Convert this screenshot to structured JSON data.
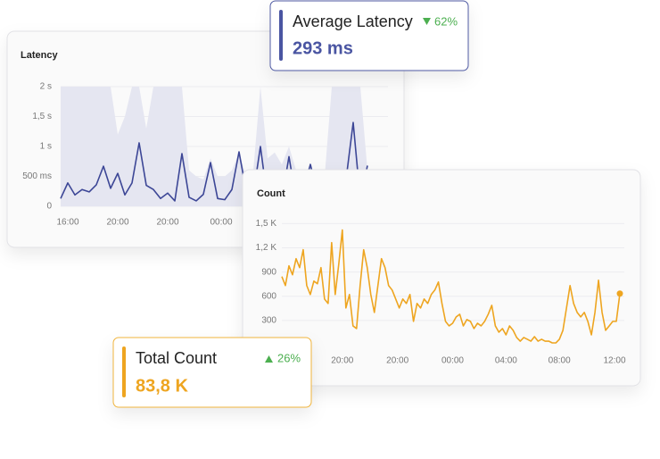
{
  "chart_data": [
    {
      "type": "line",
      "title": "Latency",
      "grid": true,
      "xlim": [
        0,
        43
      ],
      "ylim": [
        0,
        2000
      ],
      "xticks": [
        {
          "value": 1,
          "label": "16:00"
        },
        {
          "value": 8,
          "label": "20:00"
        },
        {
          "value": 15,
          "label": "20:00"
        },
        {
          "value": 22.5,
          "label": "00:00"
        }
      ],
      "yticks": [
        0,
        {
          "value": 500,
          "label": "500 ms"
        },
        {
          "value": 1000,
          "label": "1 s"
        },
        {
          "value": 1500,
          "label": "1,5 s"
        },
        {
          "value": 2000,
          "label": "2 s"
        }
      ],
      "series": [
        {
          "style": "area",
          "color": "#e5e6f1",
          "values": [
            2000,
            2000,
            2000,
            2000,
            2000,
            2000,
            2000,
            2000,
            1200,
            1500,
            2000,
            2000,
            1300,
            2000,
            2000,
            2000,
            2000,
            2000,
            600,
            500,
            450,
            800,
            500,
            500,
            600,
            900,
            500,
            600,
            2000,
            800,
            900,
            700,
            1000,
            600,
            500,
            700,
            400,
            500,
            2000,
            2000,
            2000,
            2000,
            2000,
            600
          ]
        },
        {
          "style": "line",
          "color": "#3c4696",
          "values": [
            130,
            390,
            190,
            280,
            240,
            360,
            670,
            300,
            550,
            190,
            390,
            1060,
            350,
            280,
            130,
            220,
            90,
            880,
            150,
            90,
            200,
            730,
            130,
            110,
            280,
            910,
            250,
            200,
            1000,
            90,
            150,
            120,
            830,
            110,
            250,
            700,
            200,
            120,
            540,
            90,
            450,
            1400,
            100,
            680
          ]
        }
      ]
    },
    {
      "type": "line",
      "title": "Count",
      "grid": true,
      "xlim": [
        0,
        95
      ],
      "ylim": [
        0,
        1560
      ],
      "xticks": [
        {
          "value": 17,
          "label": "20:00"
        },
        {
          "value": 32.5,
          "label": "20:00"
        },
        {
          "value": 48,
          "label": "00:00"
        },
        {
          "value": 63,
          "label": "04:00"
        },
        {
          "value": 78,
          "label": "08:00"
        },
        {
          "value": 93.5,
          "label": "12:00"
        }
      ],
      "yticks": [
        300,
        600,
        900,
        {
          "value": 1200,
          "label": "1,2 K"
        },
        {
          "value": 1500,
          "label": "1,5 K"
        }
      ],
      "series": [
        {
          "style": "line",
          "color": "#eea520",
          "end_marker": true,
          "values": [
            844,
            733,
            977,
            866,
            1066,
            955,
            1177,
            733,
            622,
            788,
            755,
            955,
            566,
            511,
            1265,
            622,
            999,
            1421,
            455,
            622,
            233,
            200,
            733,
            1177,
            955,
            622,
            400,
            733,
            1066,
            955,
            733,
            677,
            566,
            455,
            566,
            511,
            622,
            289,
            511,
            455,
            566,
            511,
            622,
            677,
            777,
            511,
            289,
            233,
            266,
            344,
            377,
            233,
            311,
            289,
            200,
            266,
            233,
            289,
            377,
            488,
            233,
            155,
            200,
            122,
            233,
            178,
            89,
            44,
            89,
            67,
            44,
            100,
            44,
            67,
            44,
            44,
            22,
            22,
            67,
            178,
            455,
            733,
            511,
            400,
            344,
            400,
            289,
            122,
            400,
            799,
            400,
            178,
            233,
            289,
            289,
            633
          ]
        }
      ]
    }
  ],
  "cards": [
    {
      "title": "Average Latency",
      "change": "62%",
      "value": "293 ms"
    },
    {
      "title": "Total Count",
      "change": "26%",
      "value": "83,8 K"
    }
  ]
}
